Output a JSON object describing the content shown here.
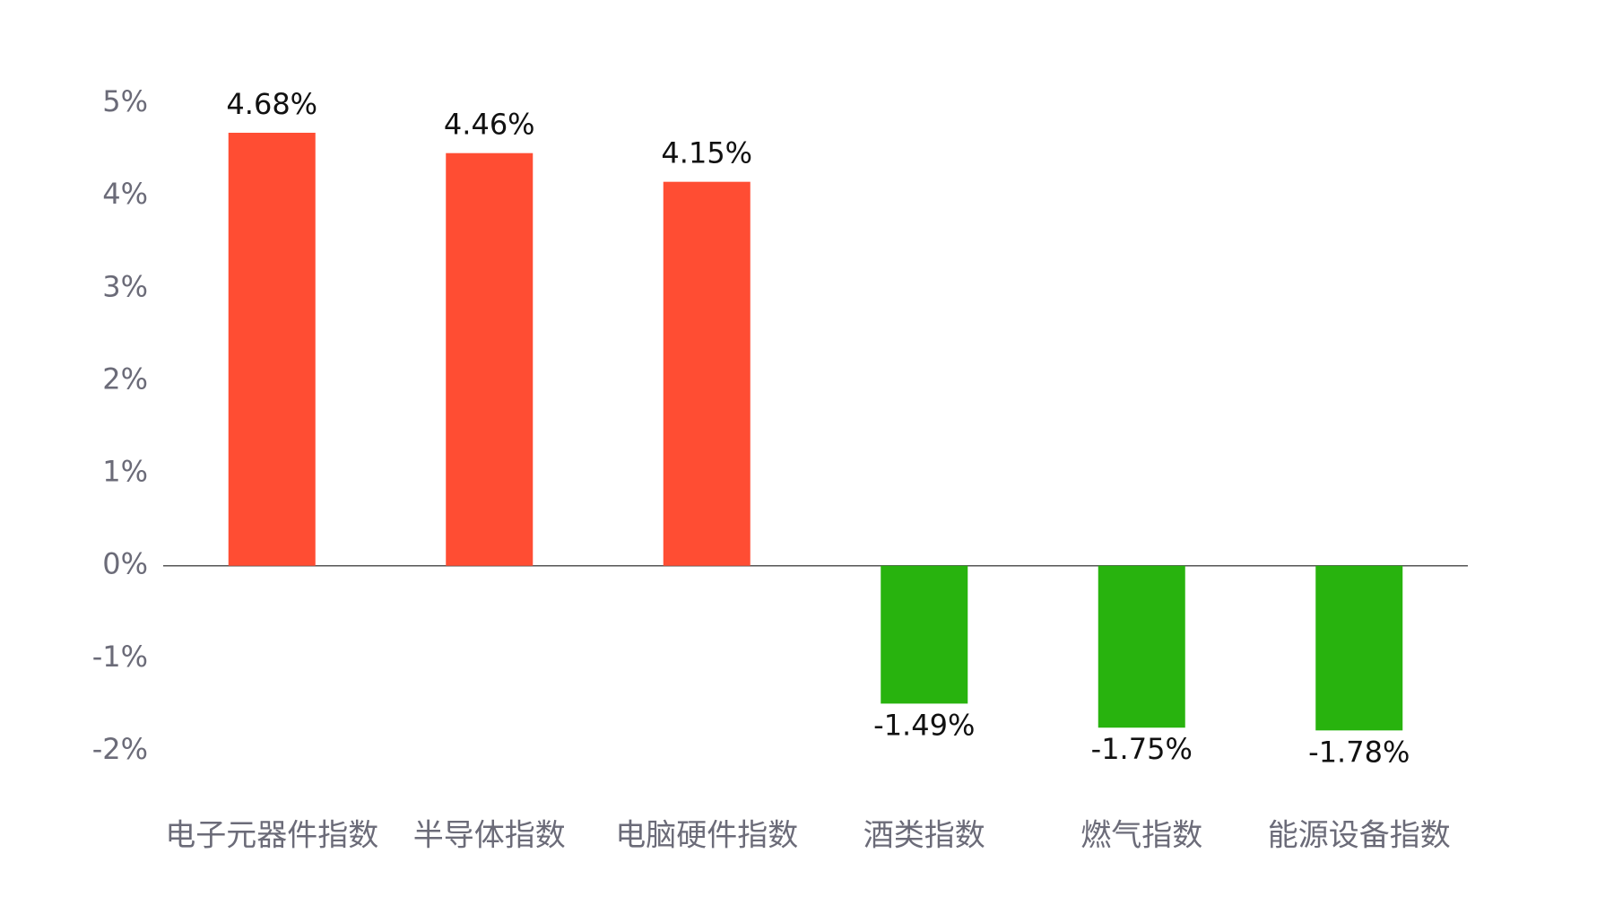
{
  "chart_data": {
    "type": "bar",
    "categories": [
      "电子元器件指数",
      "半导体指数",
      "电脑硬件指数",
      "酒类指数",
      "燃气指数",
      "能源设备指数"
    ],
    "values": [
      4.68,
      4.46,
      4.15,
      -1.49,
      -1.75,
      -1.78
    ],
    "value_labels": [
      "4.68%",
      "4.46%",
      "4.15%",
      "-1.49%",
      "-1.75%",
      "-1.78%"
    ],
    "colors": [
      "#ff4d33",
      "#ff4d33",
      "#ff4d33",
      "#28b30e",
      "#28b30e",
      "#28b30e"
    ],
    "ylim": [
      -2,
      5
    ],
    "yticks": [
      {
        "value": 5,
        "label": "5%"
      },
      {
        "value": 4,
        "label": "4%"
      },
      {
        "value": 3,
        "label": "3%"
      },
      {
        "value": 2,
        "label": "2%"
      },
      {
        "value": 1,
        "label": "1%"
      },
      {
        "value": 0,
        "label": "0%"
      },
      {
        "value": -1,
        "label": "-1%"
      },
      {
        "value": -2,
        "label": "-2%"
      }
    ],
    "grid": false
  }
}
